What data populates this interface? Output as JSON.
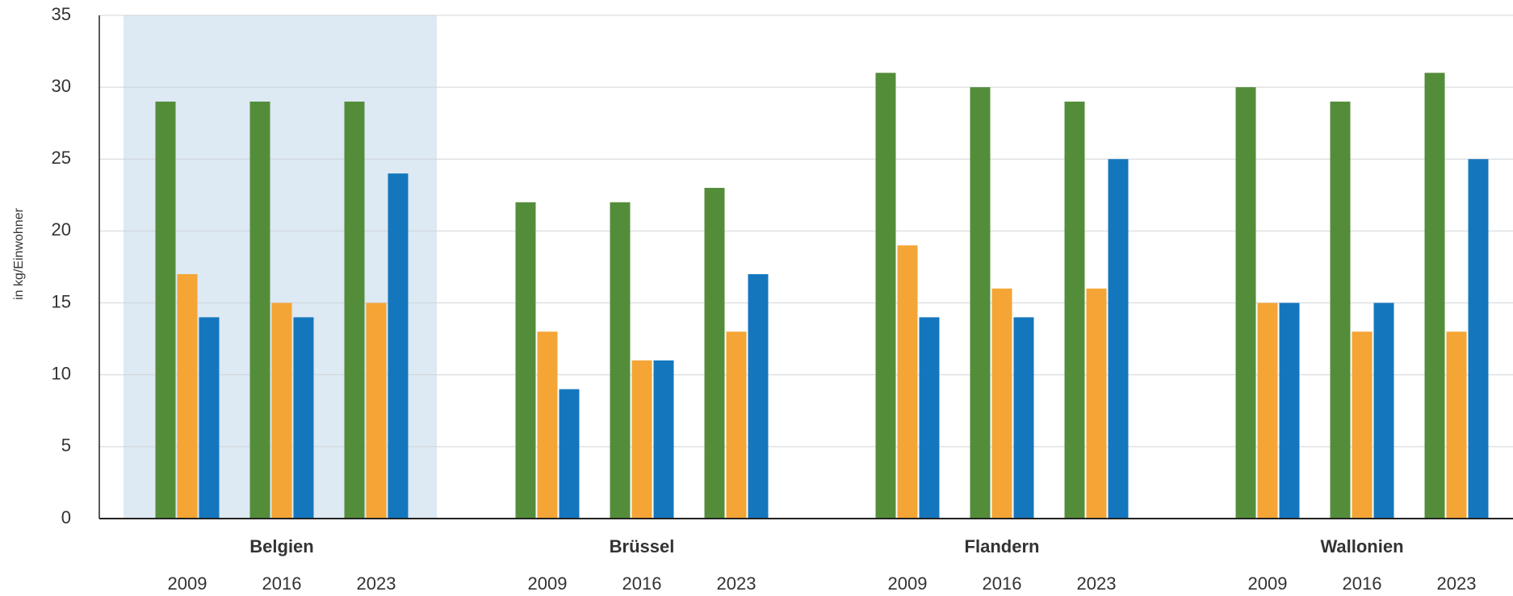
{
  "chart_data": {
    "type": "grouped-bar",
    "y_label": "in kg/Einwohner",
    "groups": [
      "Belgien",
      "Brüssel",
      "Flandern",
      "Wallonien"
    ],
    "categories": [
      "2009",
      "2016",
      "2023",
      "2009",
      "2016",
      "2023",
      "2009",
      "2016",
      "2023",
      "2009",
      "2016",
      "2023"
    ],
    "series": [
      {
        "color": "#548d3a",
        "values": [
          29,
          29,
          29,
          22,
          22,
          23,
          31,
          30,
          29,
          30,
          29,
          31
        ]
      },
      {
        "color": "#f4a535",
        "values": [
          17,
          15,
          15,
          13,
          11,
          13,
          19,
          16,
          16,
          15,
          13,
          13
        ]
      },
      {
        "color": "#1477bd",
        "values": [
          14,
          14,
          24,
          9,
          11,
          17,
          14,
          14,
          25,
          15,
          15,
          25
        ]
      }
    ],
    "ylim": [
      0,
      35
    ],
    "yticks": [
      0,
      5,
      10,
      15,
      20,
      25,
      30,
      35
    ],
    "grid": true,
    "highlight_group": 0
  }
}
